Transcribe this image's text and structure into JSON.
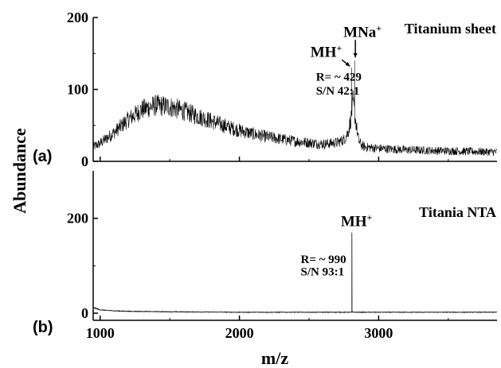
{
  "chart_data": [
    {
      "id": "a",
      "type": "line",
      "panel_label": "(a)",
      "title": "Titanium sheet",
      "ylabel": "Abundance",
      "xlabel": "m/z",
      "xlim": [
        950,
        3850
      ],
      "ylim": [
        0,
        200
      ],
      "xticks": [
        1000,
        2000,
        3000
      ],
      "yticks": [
        0,
        100,
        200
      ],
      "tick_labels_y": [
        "0",
        "100",
        "200"
      ],
      "color": "#000000",
      "series": [
        {
          "envelope_x": [
            950,
            1000,
            1100,
            1200,
            1300,
            1400,
            1500,
            1600,
            1700,
            1800,
            1900,
            2000,
            2100,
            2200,
            2300,
            2400,
            2500,
            2600,
            2700,
            2750,
            2780,
            2800,
            2810,
            2815,
            2820,
            2825,
            2830,
            2840,
            2850,
            2860,
            2880,
            2900,
            3000,
            3200,
            3400,
            3600,
            3850
          ],
          "envelope_y": [
            20,
            25,
            40,
            58,
            72,
            78,
            76,
            70,
            63,
            56,
            49,
            43,
            38,
            34,
            31,
            28,
            26,
            24,
            26,
            30,
            40,
            58,
            72,
            85,
            78,
            70,
            62,
            50,
            35,
            27,
            22,
            20,
            18,
            16,
            15,
            14,
            13
          ],
          "noise_amplitude": 12
        }
      ],
      "peaks": [
        {
          "x": 2805,
          "y": 130,
          "label": "MH",
          "superscript": "+"
        },
        {
          "x": 2827,
          "y": 140,
          "label": "MNa",
          "superscript": "+"
        }
      ],
      "annotations": [
        {
          "text": "R= ~ 429",
          "x": 2550,
          "y": 112
        },
        {
          "text": "S/N 42:1",
          "x": 2550,
          "y": 93
        }
      ]
    },
    {
      "id": "b",
      "type": "line",
      "panel_label": "(b)",
      "title": "Titania NTA",
      "xlabel": "m/z",
      "xlim": [
        950,
        3850
      ],
      "ylim": [
        -15,
        300
      ],
      "xticks": [
        1000,
        2000,
        3000
      ],
      "yticks": [
        0,
        200
      ],
      "tick_labels_y": [
        "0",
        "200"
      ],
      "tick_labels_x": [
        "1000",
        "2000",
        "3000"
      ],
      "color": "#000000",
      "series": [
        {
          "envelope_x": [
            950,
            970,
            1000,
            1100,
            1200,
            1500,
            2000,
            2500,
            3000,
            3500,
            3850
          ],
          "envelope_y": [
            12,
            10,
            7,
            5,
            4,
            3,
            2,
            2,
            2,
            2,
            2
          ],
          "noise_amplitude": 2
        }
      ],
      "peaks": [
        {
          "x": 2808,
          "y": 170,
          "label": "MH",
          "superscript": "+"
        }
      ],
      "annotations": [
        {
          "text": "R= ~ 990",
          "x": 2440,
          "y": 106
        },
        {
          "text": "S/N 93:1",
          "x": 2440,
          "y": 80
        }
      ]
    }
  ]
}
